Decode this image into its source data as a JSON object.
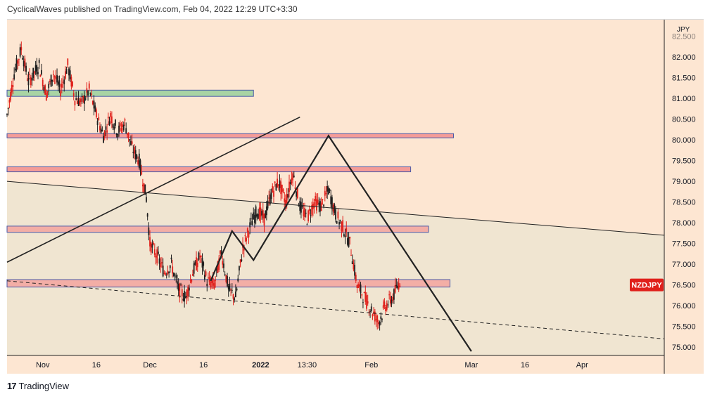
{
  "header": {
    "text": "CyclicalWaves published on TradingView.com, Feb 04, 2022 12:29 UTC+3:30"
  },
  "footer": {
    "logo": "17",
    "brand": "TradingView"
  },
  "colors": {
    "background_upper": "#fde6d2",
    "background_lower": "#f0e5d1",
    "candle_up": "#1f1f1f",
    "candle_down": "#e0201b",
    "green_zone": "#a9d4a4",
    "red_zone": "#f49c98",
    "pink_zone": "#f3aea6",
    "price_tag": "#e0201b"
  },
  "chart_data": {
    "type": "candlestick",
    "symbol_tag": "NZDJPY",
    "currency": "JPY",
    "current_price": 76.5,
    "ylim": [
      74.8,
      82.9
    ],
    "y_ticks": [
      "82.500",
      "82.000",
      "81.500",
      "81.000",
      "80.500",
      "80.000",
      "79.500",
      "79.000",
      "78.500",
      "78.000",
      "77.500",
      "77.000",
      "76.500",
      "76.000",
      "75.500",
      "75.000"
    ],
    "x_ticks": [
      "Nov",
      "16",
      "Dec",
      "16",
      "2022",
      "13:30",
      "Feb",
      "Mar",
      "16",
      "Apr"
    ],
    "x_domain": [
      "2021-10-22",
      "2022-04-24"
    ],
    "x_tick_dates": [
      "2021-11-01",
      "2021-11-16",
      "2021-12-01",
      "2021-12-16",
      "2022-01-01",
      "2022-01-14",
      "2022-02-01",
      "2022-03-01",
      "2022-03-16",
      "2022-04-01"
    ],
    "price_path": [
      [
        "2021-10-22",
        80.6
      ],
      [
        "2021-10-24",
        81.6
      ],
      [
        "2021-10-26",
        82.2
      ],
      [
        "2021-10-28",
        81.4
      ],
      [
        "2021-10-31",
        81.8
      ],
      [
        "2021-11-02",
        81.1
      ],
      [
        "2021-11-04",
        81.6
      ],
      [
        "2021-11-06",
        81.2
      ],
      [
        "2021-11-08",
        81.8
      ],
      [
        "2021-11-10",
        81.0
      ],
      [
        "2021-11-12",
        80.9
      ],
      [
        "2021-11-14",
        81.2
      ],
      [
        "2021-11-16",
        80.6
      ],
      [
        "2021-11-18",
        80.1
      ],
      [
        "2021-11-20",
        80.6
      ],
      [
        "2021-11-22",
        80.2
      ],
      [
        "2021-11-24",
        80.4
      ],
      [
        "2021-11-26",
        79.8
      ],
      [
        "2021-11-28",
        79.5
      ],
      [
        "2021-11-30",
        78.6
      ],
      [
        "2021-12-01",
        77.5
      ],
      [
        "2021-12-03",
        77.2
      ],
      [
        "2021-12-05",
        76.8
      ],
      [
        "2021-12-07",
        77.0
      ],
      [
        "2021-12-09",
        76.4
      ],
      [
        "2021-12-11",
        76.2
      ],
      [
        "2021-12-13",
        76.8
      ],
      [
        "2021-12-15",
        77.2
      ],
      [
        "2021-12-17",
        76.6
      ],
      [
        "2021-12-19",
        76.5
      ],
      [
        "2021-12-21",
        77.3
      ],
      [
        "2021-12-23",
        76.4
      ],
      [
        "2021-12-25",
        76.2
      ],
      [
        "2021-12-27",
        77.4
      ],
      [
        "2021-12-29",
        77.9
      ],
      [
        "2021-12-31",
        78.3
      ],
      [
        "2022-01-02",
        78.1
      ],
      [
        "2022-01-04",
        78.7
      ],
      [
        "2022-01-06",
        79.0
      ],
      [
        "2022-01-08",
        78.5
      ],
      [
        "2022-01-10",
        79.2
      ],
      [
        "2022-01-12",
        78.4
      ],
      [
        "2022-01-14",
        78.1
      ],
      [
        "2022-01-16",
        78.5
      ],
      [
        "2022-01-18",
        78.4
      ],
      [
        "2022-01-20",
        78.8
      ],
      [
        "2022-01-22",
        78.2
      ],
      [
        "2022-01-24",
        77.9
      ],
      [
        "2022-01-26",
        77.5
      ],
      [
        "2022-01-28",
        76.5
      ],
      [
        "2022-01-30",
        76.2
      ],
      [
        "2022-02-01",
        75.9
      ],
      [
        "2022-02-03",
        75.6
      ],
      [
        "2022-02-05",
        76.0
      ],
      [
        "2022-02-07",
        76.2
      ],
      [
        "2022-02-09",
        76.6
      ]
    ],
    "zones": [
      {
        "color": "green",
        "y1": 81.05,
        "y2": 81.2,
        "x_start": "2021-10-22",
        "x_end": "2021-12-30"
      },
      {
        "color": "red",
        "y1": 80.05,
        "y2": 80.15,
        "x_start": "2021-10-22",
        "x_end": "2022-02-24"
      },
      {
        "color": "red",
        "y1": 79.23,
        "y2": 79.35,
        "x_start": "2021-10-22",
        "x_end": "2022-02-12"
      },
      {
        "color": "pink",
        "y1": 77.77,
        "y2": 77.92,
        "x_start": "2021-10-22",
        "x_end": "2022-02-17"
      },
      {
        "color": "pink",
        "y1": 76.45,
        "y2": 76.63,
        "x_start": "2021-10-22",
        "x_end": "2022-02-23"
      }
    ],
    "lines": [
      {
        "style": "solid-thin",
        "points": [
          [
            "2021-10-22",
            77.05
          ],
          [
            "2022-01-12",
            80.55
          ]
        ]
      },
      {
        "style": "solid-thin",
        "points": [
          [
            "2021-10-22",
            79.0
          ],
          [
            "2022-04-24",
            77.7
          ]
        ]
      },
      {
        "style": "dashed",
        "points": [
          [
            "2021-10-22",
            76.6
          ],
          [
            "2022-04-24",
            75.2
          ]
        ]
      },
      {
        "style": "solid-thick",
        "points": [
          [
            "2021-12-18",
            76.6
          ],
          [
            "2021-12-24",
            77.8
          ],
          [
            "2021-12-30",
            77.1
          ],
          [
            "2022-01-20",
            80.1
          ],
          [
            "2022-02-29",
            74.9
          ]
        ]
      }
    ]
  }
}
